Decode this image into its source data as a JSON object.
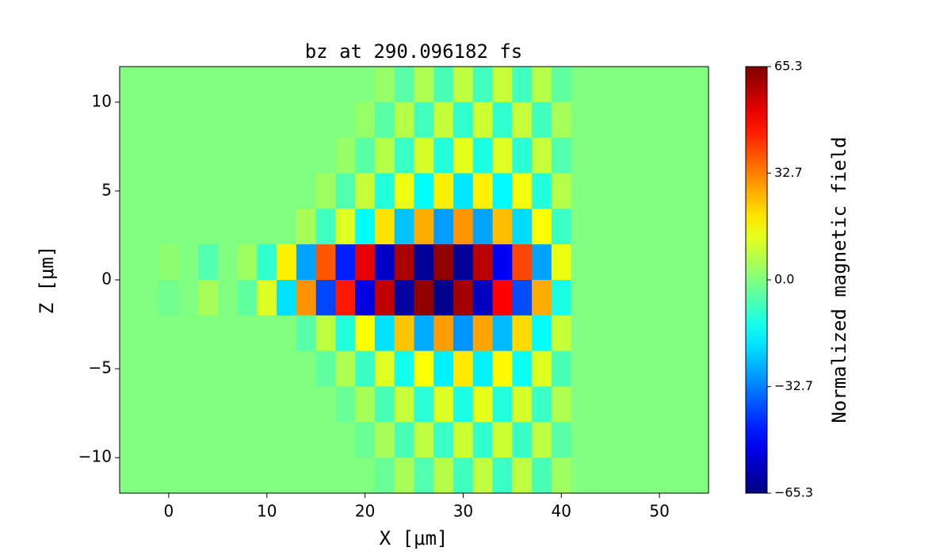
{
  "chart_data": {
    "type": "heatmap",
    "title": "bz at 290.096182 fs",
    "xlabel": "X [μm]",
    "ylabel": "Z [μm]",
    "colorbar_label": "Normalized magnetic field",
    "colormap": "jet",
    "xlim": [
      -5,
      55
    ],
    "ylim": [
      -12,
      12
    ],
    "xticks": [
      0,
      10,
      20,
      30,
      40,
      50
    ],
    "yticks": [
      {
        "value": -10,
        "label": "−10"
      },
      {
        "value": -5,
        "label": "−5"
      },
      0,
      5,
      10
    ],
    "clim": [
      -65.3,
      65.3
    ],
    "cticks": [
      {
        "value": -65.3,
        "label": "−65.3"
      },
      {
        "value": -32.7,
        "label": "−32.7"
      },
      {
        "value": 0,
        "label": "0.0"
      },
      32.7,
      65.3
    ],
    "x": [
      -4,
      -2,
      0,
      2,
      4,
      6,
      8,
      10,
      12,
      14,
      16,
      18,
      20,
      22,
      24,
      26,
      28,
      30,
      32,
      34,
      36,
      38,
      40,
      42,
      44,
      46,
      48,
      50,
      52,
      54
    ],
    "y": [
      11,
      9,
      7,
      5,
      3,
      1,
      -1,
      -3,
      -5,
      -7,
      -9,
      -11
    ],
    "z": [
      [
        0,
        0,
        0,
        0,
        0,
        0,
        0,
        0,
        0,
        0,
        0,
        0,
        0,
        3,
        -5,
        6,
        -7,
        8,
        -8,
        9,
        -8,
        7,
        -4,
        0,
        0,
        0,
        0,
        0,
        0,
        0
      ],
      [
        0,
        0,
        0,
        0,
        0,
        0,
        0,
        0,
        0,
        0,
        0,
        0,
        3,
        -5,
        7,
        -8,
        9,
        -10,
        10,
        -10,
        9,
        -8,
        5,
        0,
        0,
        0,
        0,
        0,
        0,
        0
      ],
      [
        0,
        0,
        0,
        0,
        0,
        0,
        0,
        0,
        0,
        0,
        0,
        3,
        -5,
        7,
        -9,
        11,
        -12,
        13,
        -13,
        12,
        -11,
        9,
        -6,
        0,
        0,
        0,
        0,
        0,
        0,
        0
      ],
      [
        0,
        0,
        0,
        0,
        0,
        0,
        0,
        0,
        0,
        0,
        4,
        -6,
        9,
        -12,
        14,
        -16,
        18,
        -19,
        18,
        -17,
        15,
        -12,
        7,
        0,
        0,
        0,
        0,
        0,
        0,
        0
      ],
      [
        0,
        0,
        0,
        0,
        0,
        0,
        0,
        0,
        0,
        5,
        -8,
        12,
        -16,
        20,
        -24,
        27,
        -29,
        30,
        -28,
        25,
        -21,
        16,
        -9,
        0,
        0,
        0,
        0,
        0,
        0,
        0
      ],
      [
        0,
        0,
        2,
        0,
        -6,
        0,
        4,
        -10,
        18,
        -28,
        38,
        -45,
        52,
        -56,
        60,
        -62,
        63,
        -62,
        58,
        -50,
        40,
        -28,
        14,
        0,
        0,
        0,
        0,
        0,
        0,
        0
      ],
      [
        0,
        0,
        -2,
        0,
        5,
        0,
        -4,
        12,
        -20,
        30,
        -40,
        46,
        -53,
        57,
        -61,
        63,
        -64,
        61,
        -57,
        49,
        -39,
        27,
        -13,
        0,
        0,
        0,
        0,
        0,
        0,
        0
      ],
      [
        0,
        0,
        0,
        0,
        0,
        0,
        0,
        0,
        0,
        -5,
        8,
        -12,
        16,
        -20,
        24,
        -27,
        29,
        -30,
        28,
        -25,
        21,
        -16,
        9,
        0,
        0,
        0,
        0,
        0,
        0,
        0
      ],
      [
        0,
        0,
        0,
        0,
        0,
        0,
        0,
        0,
        0,
        0,
        -4,
        6,
        -9,
        12,
        -14,
        16,
        -18,
        19,
        -18,
        17,
        -15,
        12,
        -7,
        0,
        0,
        0,
        0,
        0,
        0,
        0
      ],
      [
        0,
        0,
        0,
        0,
        0,
        0,
        0,
        0,
        0,
        0,
        0,
        -3,
        5,
        -7,
        9,
        -11,
        12,
        -13,
        13,
        -12,
        11,
        -9,
        6,
        0,
        0,
        0,
        0,
        0,
        0,
        0
      ],
      [
        0,
        0,
        0,
        0,
        0,
        0,
        0,
        0,
        0,
        0,
        0,
        0,
        -3,
        5,
        -7,
        8,
        -9,
        10,
        -10,
        10,
        -9,
        8,
        -5,
        0,
        0,
        0,
        0,
        0,
        0,
        0
      ],
      [
        0,
        0,
        0,
        0,
        0,
        0,
        0,
        0,
        0,
        0,
        0,
        0,
        0,
        -3,
        5,
        -6,
        7,
        -8,
        8,
        -9,
        8,
        -7,
        4,
        0,
        0,
        0,
        0,
        0,
        0,
        0
      ]
    ]
  }
}
